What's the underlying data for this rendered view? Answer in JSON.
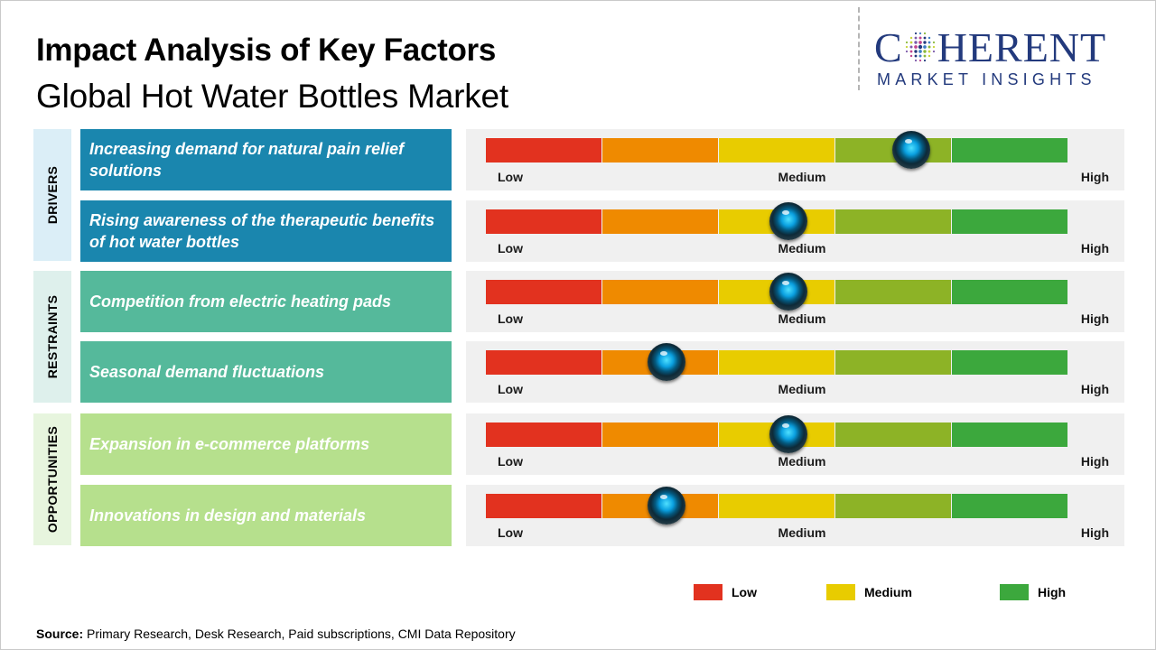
{
  "title": "Impact Analysis of Key Factors",
  "subtitle": "Global Hot Water Bottles Market",
  "logo": {
    "main_before": "C",
    "main_after": "HERENT",
    "sub": "MARKET INSIGHTS",
    "color": "#233a7d"
  },
  "scale_labels": {
    "low": "Low",
    "medium": "Medium",
    "high": "High"
  },
  "segment_colors": [
    "#e2321f",
    "#ef8a00",
    "#e8cc00",
    "#8db326",
    "#3ca83d"
  ],
  "categories": [
    {
      "label": "DRIVERS",
      "bg": "#dbeef7"
    },
    {
      "label": "RESTRAINTS",
      "bg": "#def0ec"
    },
    {
      "label": "OPPORTUNITIES",
      "bg": "#e7f5de"
    }
  ],
  "factors": [
    {
      "text": "Increasing demand for natural pain relief solutions",
      "category": "DRIVERS",
      "impact_level": 0.73,
      "color": "#1a86ae"
    },
    {
      "text": "Rising awareness of the therapeutic benefits of hot water bottles",
      "category": "DRIVERS",
      "impact_level": 0.52,
      "color": "#1a86ae"
    },
    {
      "text": "Competition from electric heating pads",
      "category": "RESTRAINTS",
      "impact_level": 0.52,
      "color": "#55b99b"
    },
    {
      "text": "Seasonal demand fluctuations",
      "category": "RESTRAINTS",
      "impact_level": 0.31,
      "color": "#55b99b"
    },
    {
      "text": "Expansion in e-commerce platforms",
      "category": "OPPORTUNITIES",
      "impact_level": 0.52,
      "color": "#b6e08d"
    },
    {
      "text": "Innovations in design and materials",
      "category": "OPPORTUNITIES",
      "impact_level": 0.31,
      "color": "#b6e08d"
    }
  ],
  "legend": [
    {
      "label": "Low",
      "color": "#e2321f"
    },
    {
      "label": "Medium",
      "color": "#e8cc00"
    },
    {
      "label": "High",
      "color": "#3ca83d"
    }
  ],
  "source": {
    "label": "Source:",
    "text": "Primary Research, Desk Research, Paid subscriptions, CMI Data Repository"
  }
}
